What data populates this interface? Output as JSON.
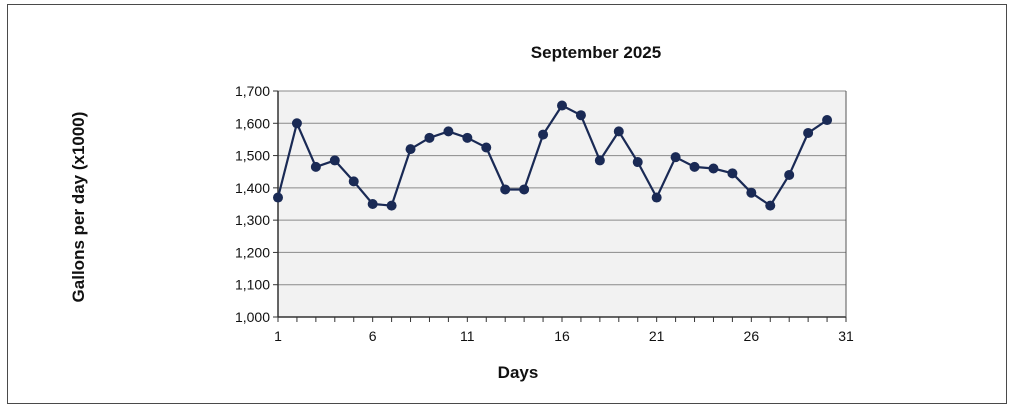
{
  "chart_data": {
    "type": "line",
    "title": "September  2025",
    "xlabel": "Days",
    "ylabel": "Gallons per day  (x1000)",
    "xlim": [
      1,
      31
    ],
    "ylim": [
      1000,
      1700
    ],
    "x_ticks": [
      1,
      6,
      11,
      16,
      21,
      26,
      31
    ],
    "y_ticks": [
      "1,000",
      "1,100",
      "1,200",
      "1,300",
      "1,400",
      "1,500",
      "1,600",
      "1,700"
    ],
    "grid": true,
    "series": [
      {
        "color": "#1a2a55",
        "x": [
          1,
          2,
          3,
          4,
          5,
          6,
          7,
          8,
          9,
          10,
          11,
          12,
          13,
          14,
          15,
          16,
          17,
          18,
          19,
          20,
          21,
          22,
          23,
          24,
          25,
          26,
          27,
          28,
          29,
          30
        ],
        "y": [
          1370,
          1600,
          1465,
          1485,
          1420,
          1350,
          1345,
          1520,
          1555,
          1575,
          1555,
          1525,
          1395,
          1395,
          1565,
          1655,
          1625,
          1485,
          1575,
          1480,
          1370,
          1495,
          1465,
          1460,
          1445,
          1385,
          1345,
          1440,
          1570,
          1610
        ]
      }
    ]
  }
}
